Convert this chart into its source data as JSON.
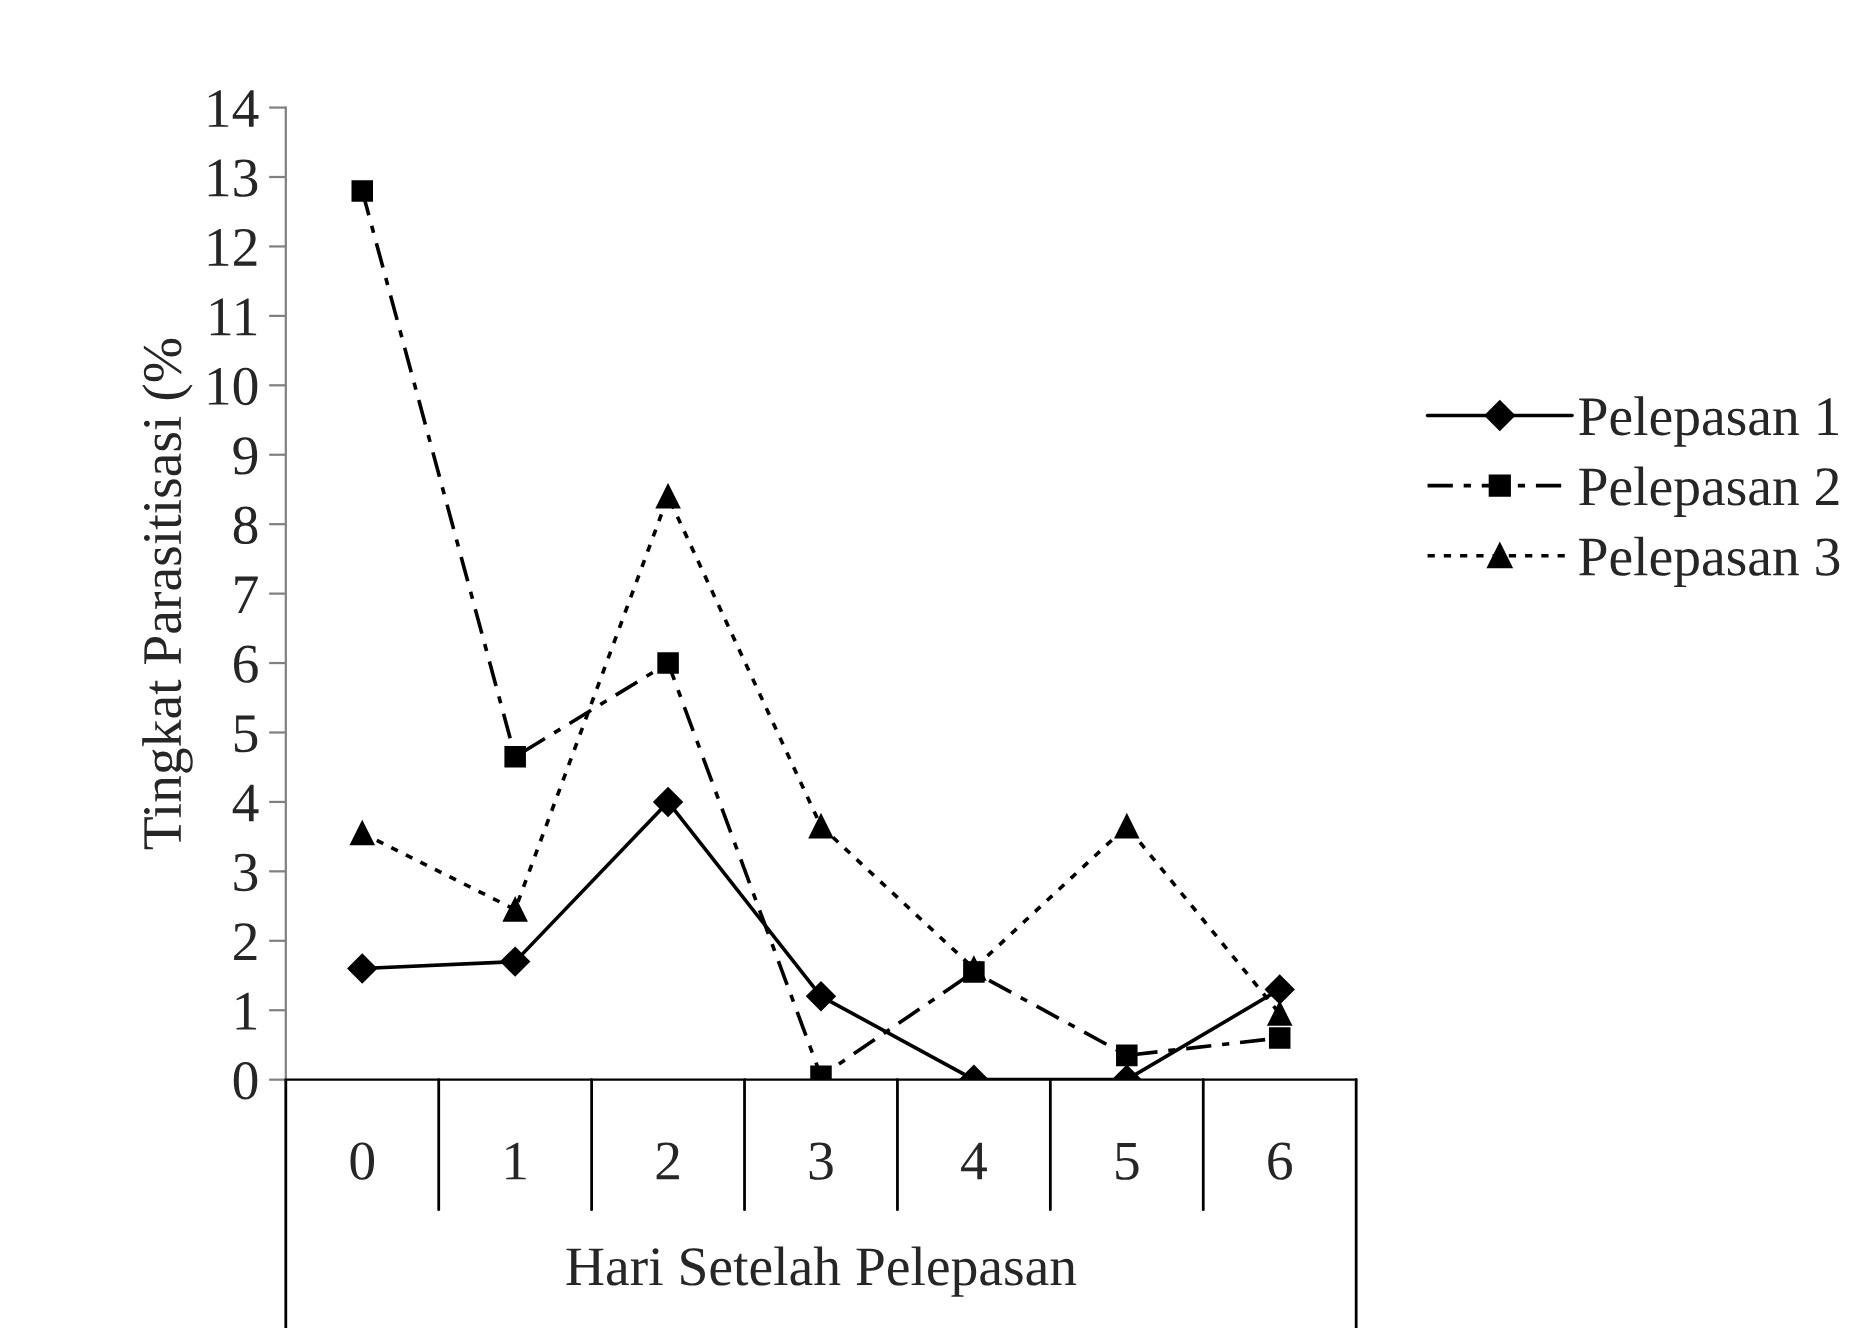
{
  "chart_data": {
    "type": "line",
    "xlabel": "Hari Setelah Pelepasan",
    "ylabel": "Tingkat Parasitisasi (%",
    "categories": [
      "0",
      "1",
      "2",
      "3",
      "4",
      "5",
      "6"
    ],
    "series": [
      {
        "name": "Pelepasan 1",
        "color": "#000000",
        "marker": "diamond",
        "line_style": "solid",
        "values": [
          1.6,
          1.7,
          4.0,
          1.2,
          0,
          0,
          1.3
        ]
      },
      {
        "name": "Pelepasan 2",
        "color": "#000000",
        "marker": "square",
        "line_style": "dashed",
        "values": [
          12.8,
          4.65,
          6.0,
          0.05,
          1.55,
          0.35,
          0.6
        ]
      },
      {
        "name": "Pelepasan 3",
        "color": "#000000",
        "marker": "triangle",
        "line_style": "dotted",
        "values": [
          3.55,
          2.45,
          8.4,
          3.65,
          1.6,
          3.65,
          0.95
        ]
      }
    ],
    "ylim": [
      0,
      14
    ],
    "yticks": [
      0,
      1,
      2,
      3,
      4,
      5,
      6,
      7,
      8,
      9,
      10,
      11,
      12,
      13,
      14
    ],
    "grid": false,
    "legend": "right"
  }
}
